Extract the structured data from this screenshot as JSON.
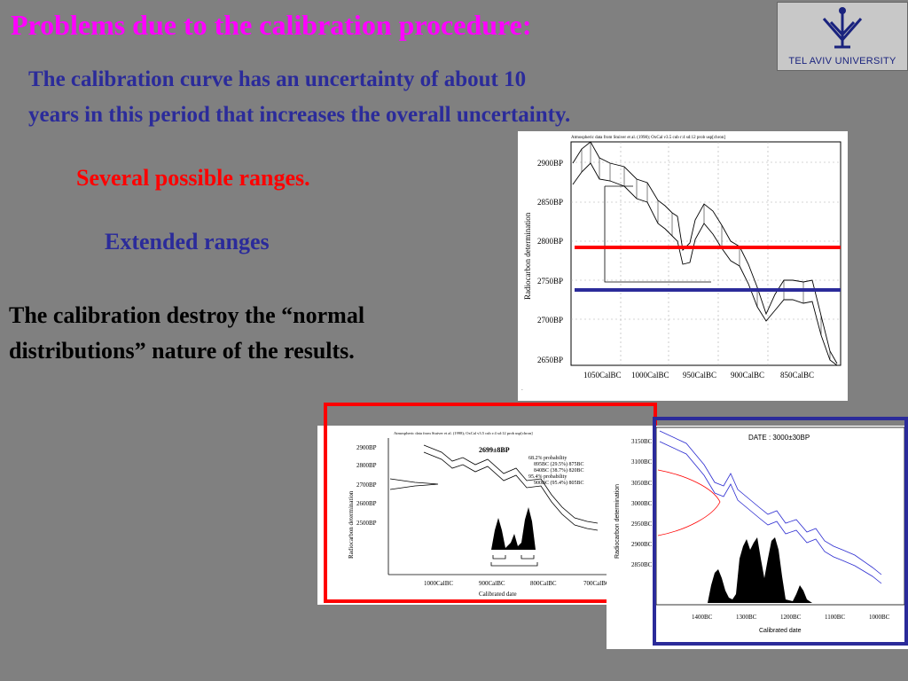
{
  "title": "Problems due  to the  calibration procedure:",
  "intro_line1": "The  calibration  curve  has  an  uncertainty  of  about 10",
  "intro_line2": "years  in  this  period that increases the overall uncertainty.",
  "several_ranges": "Several  possible  ranges.",
  "extended_ranges": "Extended  ranges",
  "destroy_line1": "The calibration destroy  the   “normal",
  "destroy_line2": "distributions”  nature  of  the  results.",
  "logo": {
    "text": "TEL AVIV UNIVERSITY",
    "color": "#1a237e"
  },
  "colors": {
    "title": "#ff00ff",
    "blue": "#2b2b9a",
    "red": "#ff0000",
    "background": "#808080"
  },
  "chart_data": [
    {
      "type": "line",
      "header": "Atmospheric data from Stuiver et al. (1998); OxCal v3.5 cub r:4 sd:12 prob usp[chron]",
      "ylabel": "Radiocarbon determination",
      "yticks": [
        "2900BP",
        "2850BP",
        "2800BP",
        "2750BP",
        "2700BP",
        "2650BP"
      ],
      "xticks": [
        "1050CalBC",
        "1000CalBC",
        "950CalBC",
        "900CalBC",
        "850CalBC"
      ],
      "overlay_lines": [
        {
          "color": "red",
          "value_bp": 2790
        },
        {
          "color": "blue",
          "value_bp": 2737
        }
      ]
    },
    {
      "type": "line",
      "header": "Atmospheric data from Stuiver et al. (1998); OxCal v3.5 cub r:4 sd:12 prob usp[chron]",
      "sample": "2699±8BP",
      "probabilities": [
        "68.2% probability",
        "895BC (29.5%) 875BC",
        "840BC (38.7%) 820BC",
        "95.4% probability",
        "900BC (95.4%) 805BC"
      ],
      "ylabel": "Radiocarbon determination",
      "yticks": [
        "2900BP",
        "2800BP",
        "2700BP",
        "2600BP",
        "2500BP"
      ],
      "xticks": [
        "1000CalBC",
        "900CalBC",
        "800CalBC",
        "700CalBC"
      ],
      "xlabel": "Calibrated date"
    },
    {
      "type": "line",
      "sample": "DATE : 3000±30BP",
      "ylabel": "Radiocarbon determination",
      "yticks": [
        "3150BC",
        "3100BC",
        "3050BC",
        "3000BC",
        "2950BC",
        "2900BC",
        "2850BC"
      ],
      "xticks": [
        "1400BC",
        "1300BC",
        "1200BC",
        "1100BC",
        "1000BC"
      ],
      "xlabel": "Calibrated date"
    }
  ]
}
